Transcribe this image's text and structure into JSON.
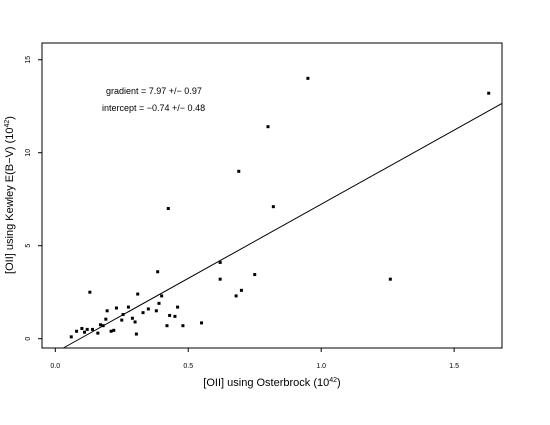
{
  "chart_data": {
    "type": "scatter",
    "xlabel": {
      "main": "[OII] using Osterbrock (10",
      "sup": "42",
      "end": ")"
    },
    "ylabel": {
      "main": "[OII] using Kewley E(B−V) (10",
      "sup": "42",
      "end": ")"
    },
    "xlim": [
      -0.05,
      1.68
    ],
    "ylim": [
      -0.5,
      15.9
    ],
    "x_ticks": [
      0.0,
      0.5,
      1.0,
      1.5
    ],
    "x_tick_labels": [
      "0.0",
      "0.5",
      "1.0",
      "1.5"
    ],
    "y_ticks": [
      0,
      5,
      10,
      15
    ],
    "y_tick_labels": [
      "0",
      "5",
      "10",
      "15"
    ],
    "grid": false,
    "annotations": [
      "gradient = 7.97 +/− 0.97",
      "intercept = −0.74 +/− 0.48"
    ],
    "fit_line": {
      "gradient": 7.97,
      "intercept": -0.74
    },
    "points": [
      {
        "x": 0.06,
        "y": 0.1
      },
      {
        "x": 0.08,
        "y": 0.4
      },
      {
        "x": 0.1,
        "y": 0.55
      },
      {
        "x": 0.11,
        "y": 0.35
      },
      {
        "x": 0.12,
        "y": 0.5
      },
      {
        "x": 0.14,
        "y": 0.5
      },
      {
        "x": 0.13,
        "y": 2.5
      },
      {
        "x": 0.16,
        "y": 0.3
      },
      {
        "x": 0.17,
        "y": 0.75
      },
      {
        "x": 0.18,
        "y": 0.7
      },
      {
        "x": 0.19,
        "y": 1.05
      },
      {
        "x": 0.195,
        "y": 1.5
      },
      {
        "x": 0.21,
        "y": 0.4
      },
      {
        "x": 0.22,
        "y": 0.45
      },
      {
        "x": 0.23,
        "y": 1.65
      },
      {
        "x": 0.25,
        "y": 1.0
      },
      {
        "x": 0.255,
        "y": 1.3
      },
      {
        "x": 0.275,
        "y": 1.7
      },
      {
        "x": 0.29,
        "y": 1.1
      },
      {
        "x": 0.3,
        "y": 0.9
      },
      {
        "x": 0.305,
        "y": 0.25
      },
      {
        "x": 0.31,
        "y": 2.4
      },
      {
        "x": 0.33,
        "y": 1.4
      },
      {
        "x": 0.35,
        "y": 1.6
      },
      {
        "x": 0.38,
        "y": 1.5
      },
      {
        "x": 0.39,
        "y": 1.9
      },
      {
        "x": 0.385,
        "y": 3.6
      },
      {
        "x": 0.4,
        "y": 2.3
      },
      {
        "x": 0.42,
        "y": 0.7
      },
      {
        "x": 0.43,
        "y": 1.25
      },
      {
        "x": 0.425,
        "y": 7.0
      },
      {
        "x": 0.45,
        "y": 1.2
      },
      {
        "x": 0.46,
        "y": 1.7
      },
      {
        "x": 0.48,
        "y": 0.7
      },
      {
        "x": 0.55,
        "y": 0.85
      },
      {
        "x": 0.62,
        "y": 3.2
      },
      {
        "x": 0.62,
        "y": 4.1
      },
      {
        "x": 0.68,
        "y": 2.3
      },
      {
        "x": 0.69,
        "y": 9.0
      },
      {
        "x": 0.7,
        "y": 2.6
      },
      {
        "x": 0.75,
        "y": 3.45
      },
      {
        "x": 0.8,
        "y": 11.4
      },
      {
        "x": 0.82,
        "y": 7.1
      },
      {
        "x": 0.95,
        "y": 14.0
      },
      {
        "x": 1.26,
        "y": 3.2
      },
      {
        "x": 1.63,
        "y": 13.2
      }
    ]
  }
}
